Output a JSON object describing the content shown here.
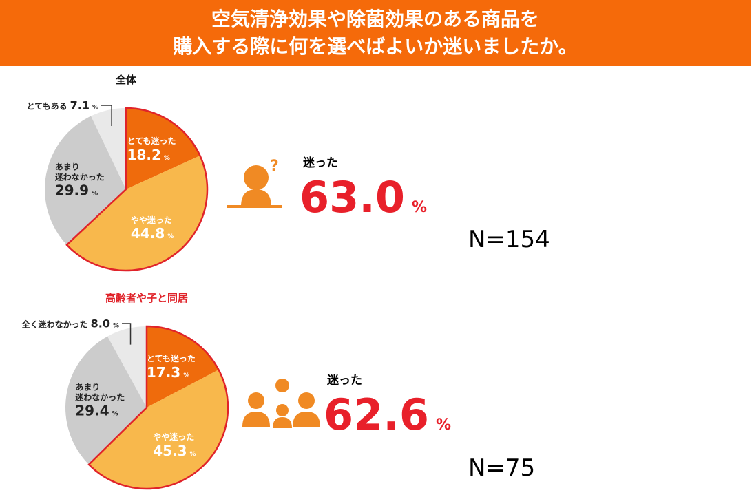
{
  "header": {
    "title": "空気清浄効果や除菌効果のある商品を\n購入する際に何を選べばよいか迷いましたか。"
  },
  "chart_data": [
    {
      "type": "pie",
      "title": "全体",
      "title_color": "#111111",
      "categories": [
        "とても迷った",
        "やや迷った",
        "あまり\n迷わなかった",
        "とてもある"
      ],
      "values": [
        18.2,
        44.8,
        29.9,
        7.1
      ],
      "colors": [
        "#ef6b0c",
        "#f8b84c",
        "#cccccc",
        "#e9e9e9"
      ],
      "unit": "%",
      "outline_color": "#e0232a",
      "summary_label": "迷った",
      "summary_value": 63,
      "summary_value_label": "63.0",
      "n_label": "N=154"
    },
    {
      "type": "pie",
      "title": "高齢者や子と同居",
      "title_color": "#e0232a",
      "categories": [
        "とても迷った",
        "やや迷った",
        "あまり\n迷わなかった",
        "全く迷わなかった"
      ],
      "values": [
        17.3,
        45.3,
        29.4,
        8.0
      ],
      "value_labels": [
        "17.3",
        "45.3",
        "29.4",
        "8.0"
      ],
      "colors": [
        "#ef6b0c",
        "#f8b84c",
        "#cccccc",
        "#e9e9e9"
      ],
      "unit": "%",
      "outline_color": "#e0232a",
      "summary_label": "迷った",
      "summary_value": 62.6,
      "n_label": "N=75"
    }
  ]
}
